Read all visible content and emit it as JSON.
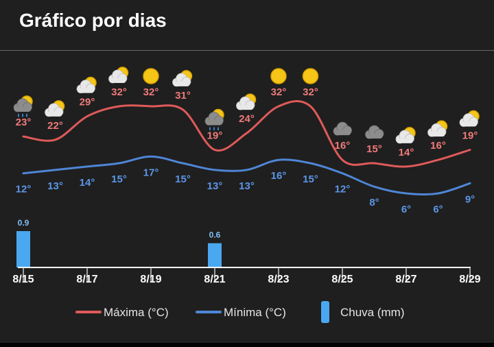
{
  "header": {
    "title": "Gráfico por dias"
  },
  "colors": {
    "max": "#e05a5a",
    "min": "#4f86d6",
    "rain": "#4aa8f0",
    "max_label": "#f07a7a",
    "min_label": "#5c96e6",
    "rain_label": "#7fbff5",
    "axis": "#ffffff",
    "background": "#1f1f1f"
  },
  "chart_data": {
    "type": "line",
    "x": [
      "8/15",
      "8/16",
      "8/17",
      "8/18",
      "8/19",
      "8/20",
      "8/21",
      "8/22",
      "8/23",
      "8/24",
      "8/25",
      "8/26",
      "8/27",
      "8/28",
      "8/29"
    ],
    "tick_labels": [
      "8/15",
      "8/17",
      "8/19",
      "8/21",
      "8/23",
      "8/25",
      "8/27",
      "8/29"
    ],
    "series": [
      {
        "name": "Máxima (°C)",
        "values": [
          23,
          22,
          29,
          32,
          32,
          31,
          19,
          24,
          32,
          32,
          16,
          15,
          14,
          16,
          19
        ]
      },
      {
        "name": "Mínima (°C)",
        "values": [
          12,
          13,
          14,
          15,
          17,
          15,
          13,
          13,
          16,
          15,
          12,
          8,
          6,
          6,
          9
        ]
      },
      {
        "name": "Chuva (mm)",
        "type": "bar",
        "values": [
          0.9,
          0,
          0,
          0,
          0,
          0,
          0.6,
          0,
          0,
          0,
          0,
          0,
          0,
          0,
          0
        ]
      }
    ],
    "weather_icons": [
      "rain-cloud-sun",
      "cloud-sun",
      "cloud-sun",
      "cloud-sun",
      "sun",
      "cloud-sun",
      "rain-cloud-sun",
      "cloud-sun",
      "sun",
      "sun",
      "cloud",
      "cloud",
      "cloud-sun",
      "cloud-sun",
      "cloud-sun"
    ],
    "legend": {
      "placement": "bottom",
      "entries": [
        "Máxima (°C)",
        "Mínima (°C)",
        "Chuva (mm)"
      ]
    },
    "grid": false,
    "max_label_suffix": "°",
    "min_label_suffix": "°"
  }
}
